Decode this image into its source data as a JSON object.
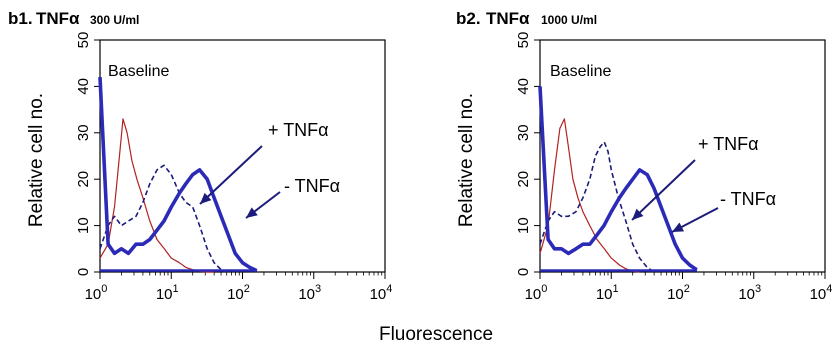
{
  "figure": {
    "xlabel": "Fluorescence"
  },
  "chart_data": [
    {
      "type": "line",
      "panel_label": "b1.",
      "title_main": "TNFα",
      "title_dose": "300 U/ml",
      "ylabel": "Relative cell no.",
      "xscale": "log",
      "xlim": [
        1,
        10000
      ],
      "ylim": [
        0,
        50
      ],
      "x_tick_labels": [
        {
          "base": "10",
          "exp": "0"
        },
        {
          "base": "10",
          "exp": "1"
        },
        {
          "base": "10",
          "exp": "2"
        },
        {
          "base": "10",
          "exp": "3"
        },
        {
          "base": "10",
          "exp": "4"
        }
      ],
      "y_ticks": [
        "0",
        "10",
        "20",
        "30",
        "40",
        "50"
      ],
      "legend_inside": "Baseline",
      "annotations": [
        {
          "text": "+ TNFα",
          "target_series": "dashed-blue"
        },
        {
          "text": "- TNFα",
          "target_series": "solid-blue"
        }
      ],
      "series": [
        {
          "style": "thin-red",
          "color": "#b22222",
          "x": [
            1.0,
            1.3,
            1.6,
            1.9,
            2.1,
            2.4,
            2.8,
            3.3,
            4.0,
            5.0,
            6.3,
            8.0,
            10,
            13,
            16,
            20,
            25,
            32,
            40
          ],
          "y": [
            3,
            6,
            14,
            26,
            33,
            30,
            24,
            20,
            16,
            11,
            7,
            5,
            3,
            2,
            1,
            0.5,
            0.2,
            0,
            0
          ]
        },
        {
          "style": "dashed-blue",
          "color": "#1c1c7a",
          "x": [
            1.0,
            1.3,
            1.6,
            2.0,
            2.5,
            3.2,
            4.0,
            5.0,
            6.3,
            7.9,
            10,
            13,
            16,
            20,
            25,
            32,
            40,
            50,
            63
          ],
          "y": [
            5,
            10,
            12,
            10,
            11,
            12,
            15,
            19,
            22,
            23,
            21,
            17,
            15,
            14,
            10,
            5,
            2,
            0.5,
            0
          ]
        },
        {
          "style": "solid-blue",
          "color": "#2b2bb8",
          "x": [
            1.0,
            1.3,
            1.6,
            2.0,
            2.5,
            3.2,
            4.0,
            5.0,
            6.3,
            7.9,
            10,
            13,
            16,
            20,
            25,
            32,
            40,
            50,
            63,
            79,
            100,
            126,
            158
          ],
          "y": [
            42,
            6,
            4,
            5,
            4,
            6,
            6,
            7,
            9,
            11,
            14,
            17,
            19,
            21,
            22,
            20,
            16,
            12,
            8,
            4,
            2,
            1,
            0.3
          ]
        }
      ]
    },
    {
      "type": "line",
      "panel_label": "b2.",
      "title_main": "TNFα",
      "title_dose": "1000 U/ml",
      "ylabel": "Relative cell no.",
      "xscale": "log",
      "xlim": [
        1,
        10000
      ],
      "ylim": [
        0,
        50
      ],
      "x_tick_labels": [
        {
          "base": "10",
          "exp": "0"
        },
        {
          "base": "10",
          "exp": "1"
        },
        {
          "base": "10",
          "exp": "2"
        },
        {
          "base": "10",
          "exp": "3"
        },
        {
          "base": "10",
          "exp": "4"
        }
      ],
      "y_ticks": [
        "0",
        "10",
        "20",
        "30",
        "40",
        "50"
      ],
      "legend_inside": "Baseline",
      "annotations": [
        {
          "text": "+ TNFα",
          "target_series": "dashed-blue"
        },
        {
          "text": "- TNFα",
          "target_series": "solid-blue"
        }
      ],
      "series": [
        {
          "style": "thin-red",
          "color": "#b22222",
          "x": [
            1.0,
            1.3,
            1.6,
            1.9,
            2.2,
            2.5,
            2.9,
            3.4,
            4.0,
            5.0,
            6.3,
            8.0,
            10,
            13,
            16,
            20,
            25
          ],
          "y": [
            4,
            10,
            22,
            31,
            33,
            27,
            20,
            16,
            13,
            10,
            7,
            5,
            3,
            1.5,
            0.7,
            0.2,
            0
          ]
        },
        {
          "style": "dashed-blue",
          "color": "#1c1c7a",
          "x": [
            1.0,
            1.3,
            1.6,
            2.0,
            2.5,
            3.2,
            4.0,
            5.0,
            6.0,
            7.0,
            8.0,
            9.0,
            10,
            12.6,
            16,
            20,
            25,
            32,
            40
          ],
          "y": [
            6,
            11,
            13,
            12,
            12,
            13,
            16,
            20,
            25,
            27,
            28,
            26,
            22,
            16,
            11,
            6,
            3,
            1,
            0
          ]
        },
        {
          "style": "solid-blue",
          "color": "#2b2bb8",
          "x": [
            1.0,
            1.3,
            1.6,
            2.0,
            2.5,
            3.2,
            4.0,
            5.0,
            6.3,
            7.9,
            10,
            13,
            16,
            20,
            25,
            32,
            40,
            50,
            63,
            79,
            100,
            126,
            158
          ],
          "y": [
            40,
            7,
            5,
            5,
            4,
            5,
            6,
            6,
            8,
            10,
            13,
            16,
            18,
            20,
            22,
            21,
            18,
            14,
            10,
            6,
            3,
            1.5,
            0.5
          ]
        }
      ]
    }
  ]
}
